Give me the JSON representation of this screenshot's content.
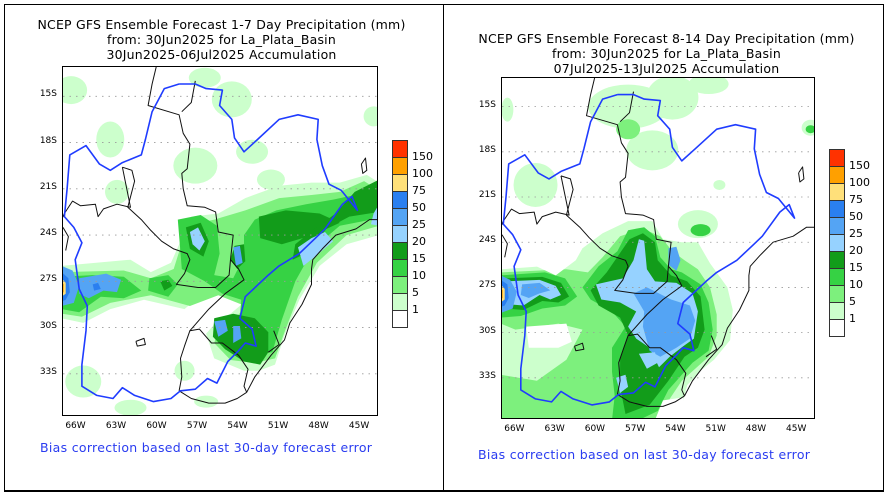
{
  "palette": {
    "white": "#ffffff",
    "p1": "#ccffcc",
    "p5": "#7df07d",
    "p10": "#36d244",
    "p15": "#129c1a",
    "p20": "#96d2ff",
    "p25": "#54a4f4",
    "p50": "#2a7ff0",
    "p75": "#ffe07a",
    "p100": "#ffa000",
    "p150": "#ff3200",
    "river": "#1f3cff",
    "border": "#000000",
    "footer_text": "#2a3cf0"
  },
  "colorbar": {
    "labels": [
      "150",
      "100",
      "75",
      "50",
      "25",
      "20",
      "15",
      "10",
      "5",
      "1"
    ],
    "colors": [
      "#ff3200",
      "#ffa000",
      "#ffe07a",
      "#2a7ff0",
      "#54a4f4",
      "#96d2ff",
      "#129c1a",
      "#36d244",
      "#7df07d",
      "#ccffcc",
      "#ffffff"
    ]
  },
  "axes": {
    "lat_labels": [
      "15S",
      "18S",
      "21S",
      "24S",
      "27S",
      "30S",
      "33S"
    ],
    "lon_labels": [
      "66W",
      "63W",
      "60W",
      "57W",
      "54W",
      "51W",
      "48W",
      "45W"
    ]
  },
  "panels": [
    {
      "title_line1": "NCEP GFS Ensemble Forecast 1-7 Day Precipitation (mm)",
      "title_line2": "from: 30Jun2025   for La_Plata_Basin",
      "title_line3": "30Jun2025-06Jul2025 Accumulation",
      "footer": "Bias correction based on last 30-day forecast error"
    },
    {
      "title_line1": "NCEP GFS Ensemble Forecast 8-14 Day Precipitation (mm)",
      "title_line2": "from: 30Jun2025   for La_Plata_Basin",
      "title_line3": "07Jul2025-13Jul2025 Accumulation",
      "footer": "Bias correction based on last 30-day forecast error"
    }
  ]
}
